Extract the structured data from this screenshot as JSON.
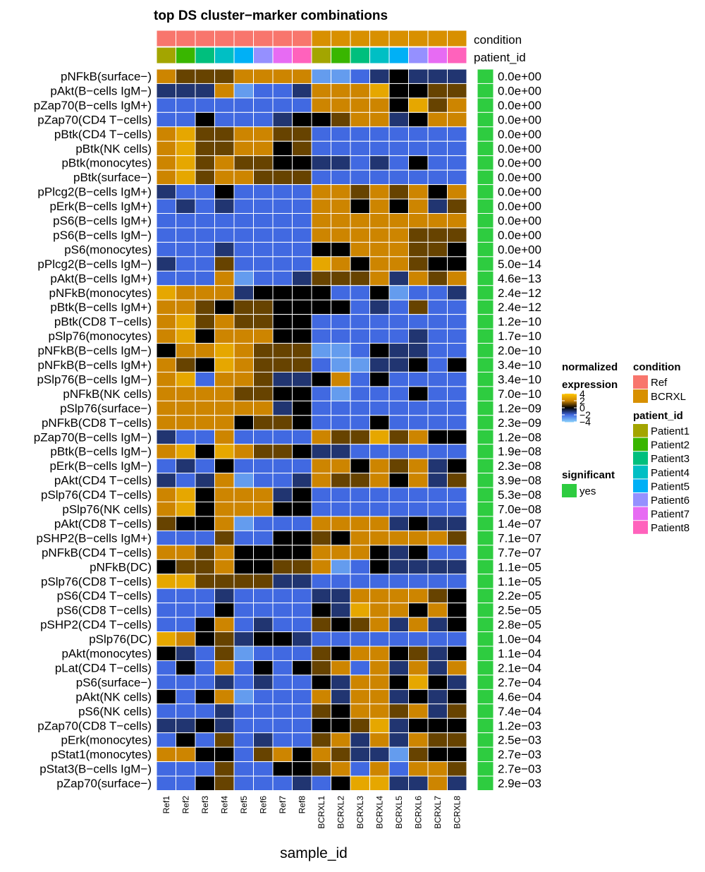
{
  "chart_data": {
    "type": "heatmap",
    "title": "top DS cluster−marker combinations",
    "xlabel": "sample_id",
    "ylabel": "",
    "samples": [
      "Ref1",
      "Ref2",
      "Ref3",
      "Ref4",
      "Ref5",
      "Ref6",
      "Ref7",
      "Ref8",
      "BCRXL1",
      "BCRXL2",
      "BCRXL3",
      "BCRXL4",
      "BCRXL5",
      "BCRXL6",
      "BCRXL7",
      "BCRXL8"
    ],
    "condition": [
      "Ref",
      "Ref",
      "Ref",
      "Ref",
      "Ref",
      "Ref",
      "Ref",
      "Ref",
      "BCRXL",
      "BCRXL",
      "BCRXL",
      "BCRXL",
      "BCRXL",
      "BCRXL",
      "BCRXL",
      "BCRXL"
    ],
    "patient_id": [
      "Patient1",
      "Patient2",
      "Patient3",
      "Patient4",
      "Patient5",
      "Patient6",
      "Patient7",
      "Patient8",
      "Patient1",
      "Patient2",
      "Patient3",
      "Patient4",
      "Patient5",
      "Patient6",
      "Patient7",
      "Patient8"
    ],
    "top_annotation_labels": [
      "condition",
      "patient_id"
    ],
    "rows": [
      "pNFkB(surface−)",
      "pAkt(B−cells IgM−)",
      "pZap70(B−cells IgM+)",
      "pZap70(CD4 T−cells)",
      "pBtk(CD4 T−cells)",
      "pBtk(NK cells)",
      "pBtk(monocytes)",
      "pBtk(surface−)",
      "pPlcg2(B−cells IgM+)",
      "pErk(B−cells IgM+)",
      "pS6(B−cells IgM+)",
      "pS6(B−cells IgM−)",
      "pS6(monocytes)",
      "pPlcg2(B−cells IgM−)",
      "pAkt(B−cells IgM+)",
      "pNFkB(monocytes)",
      "pBtk(B−cells IgM+)",
      "pBtk(CD8 T−cells)",
      "pSlp76(monocytes)",
      "pNFkB(B−cells IgM−)",
      "pNFkB(B−cells IgM+)",
      "pSlp76(B−cells IgM−)",
      "pNFkB(NK cells)",
      "pSlp76(surface−)",
      "pNFkB(CD8 T−cells)",
      "pZap70(B−cells IgM−)",
      "pBtk(B−cells IgM−)",
      "pErk(B−cells IgM−)",
      "pAkt(CD4 T−cells)",
      "pSlp76(CD4 T−cells)",
      "pSlp76(NK cells)",
      "pAkt(CD8 T−cells)",
      "pSHP2(B−cells IgM+)",
      "pNFkB(CD4 T−cells)",
      "pNFkB(DC)",
      "pSlp76(CD8 T−cells)",
      "pS6(CD4 T−cells)",
      "pS6(CD8 T−cells)",
      "pSHP2(CD4 T−cells)",
      "pSlp76(DC)",
      "pAkt(monocytes)",
      "pLat(CD4 T−cells)",
      "pS6(surface−)",
      "pAkt(NK cells)",
      "pS6(NK cells)",
      "pZap70(CD8 T−cells)",
      "pErk(monocytes)",
      "pStat1(monocytes)",
      "pStat3(B−cells IgM−)",
      "pZap70(surface−)"
    ],
    "p_adj": [
      "0.0e+00",
      "0.0e+00",
      "0.0e+00",
      "0.0e+00",
      "0.0e+00",
      "0.0e+00",
      "0.0e+00",
      "0.0e+00",
      "0.0e+00",
      "0.0e+00",
      "0.0e+00",
      "0.0e+00",
      "0.0e+00",
      "5.0e−14",
      "4.6e−13",
      "2.4e−12",
      "2.4e−12",
      "1.2e−10",
      "1.7e−10",
      "2.0e−10",
      "3.4e−10",
      "3.4e−10",
      "7.0e−10",
      "1.2e−09",
      "2.3e−09",
      "1.2e−08",
      "1.9e−08",
      "2.3e−08",
      "3.9e−08",
      "5.3e−08",
      "7.0e−08",
      "1.4e−07",
      "7.1e−07",
      "7.7e−07",
      "1.1e−05",
      "1.1e−05",
      "2.2e−05",
      "2.5e−05",
      "2.8e−05",
      "1.0e−04",
      "1.1e−04",
      "2.1e−04",
      "2.7e−04",
      "4.6e−04",
      "7.4e−04",
      "1.2e−03",
      "2.5e−03",
      "2.7e−03",
      "2.7e−03",
      "2.9e−03"
    ],
    "significant": "yes",
    "values": [
      [
        2,
        1,
        1,
        1,
        2,
        2,
        2,
        2,
        -3,
        -3,
        -2,
        -1,
        0,
        -1,
        -1,
        -1
      ],
      [
        -1,
        -1,
        -1,
        2,
        -3,
        -2,
        -2,
        -1,
        2,
        2,
        2,
        3,
        0,
        0,
        1,
        1
      ],
      [
        -2,
        -2,
        -2,
        -2,
        -2,
        -2,
        -2,
        -2,
        2,
        2,
        2,
        2,
        0,
        3,
        1,
        2
      ],
      [
        -2,
        -2,
        0,
        -2,
        -2,
        -2,
        -1,
        0,
        0,
        1,
        2,
        2,
        -1,
        0,
        2,
        2
      ],
      [
        2,
        3,
        1,
        1,
        2,
        2,
        1,
        1,
        -2,
        -2,
        -2,
        -2,
        -2,
        -2,
        -2,
        -2
      ],
      [
        2,
        3,
        1,
        1,
        2,
        2,
        0,
        1,
        -2,
        -2,
        -2,
        -2,
        -2,
        -2,
        -2,
        -2
      ],
      [
        2,
        3,
        1,
        2,
        1,
        1,
        0,
        0,
        -1,
        -1,
        -2,
        -1,
        -2,
        0,
        -2,
        -2
      ],
      [
        2,
        3,
        1,
        2,
        2,
        1,
        1,
        1,
        -2,
        -2,
        -2,
        -2,
        -2,
        -2,
        -2,
        -2
      ],
      [
        -1,
        -2,
        -2,
        0,
        -2,
        -2,
        -2,
        -2,
        2,
        2,
        1,
        2,
        1,
        2,
        0,
        2
      ],
      [
        -2,
        -1,
        -2,
        -1,
        -2,
        -2,
        -2,
        -2,
        2,
        2,
        0,
        2,
        0,
        2,
        -1,
        1
      ],
      [
        -2,
        -2,
        -2,
        -2,
        -2,
        -2,
        -2,
        -2,
        2,
        2,
        2,
        2,
        2,
        2,
        2,
        2
      ],
      [
        -2,
        -2,
        -2,
        -2,
        -2,
        -2,
        -2,
        -2,
        2,
        2,
        2,
        2,
        2,
        1,
        1,
        1
      ],
      [
        -2,
        -2,
        -2,
        -1,
        -2,
        -2,
        -2,
        -2,
        0,
        0,
        2,
        2,
        2,
        1,
        1,
        0
      ],
      [
        -1,
        -2,
        -2,
        1,
        -2,
        -2,
        -2,
        -2,
        3,
        2,
        0,
        2,
        2,
        1,
        0,
        0
      ],
      [
        -2,
        -2,
        -2,
        2,
        -3,
        -2,
        -2,
        -1,
        1,
        1,
        1,
        2,
        -1,
        2,
        1,
        2
      ],
      [
        3,
        2,
        2,
        2,
        -1,
        0,
        0,
        0,
        0,
        -2,
        -2,
        0,
        -3,
        -2,
        -2,
        -1
      ],
      [
        2,
        2,
        1,
        0,
        1,
        1,
        0,
        0,
        0,
        0,
        -2,
        -1,
        -2,
        1,
        -2,
        -2
      ],
      [
        2,
        3,
        1,
        2,
        1,
        1,
        0,
        0,
        -2,
        -2,
        -2,
        -2,
        -2,
        -2,
        -2,
        -2
      ],
      [
        2,
        3,
        0,
        2,
        2,
        2,
        0,
        0,
        -2,
        -2,
        -2,
        -2,
        -2,
        -1,
        -2,
        -2
      ],
      [
        0,
        2,
        2,
        3,
        2,
        1,
        1,
        1,
        -3,
        -3,
        -2,
        0,
        -1,
        -1,
        -2,
        -2
      ],
      [
        2,
        1,
        0,
        3,
        2,
        1,
        1,
        1,
        -2,
        -3,
        -3,
        -1,
        -1,
        0,
        -2,
        0
      ],
      [
        2,
        3,
        -2,
        2,
        2,
        1,
        -1,
        -1,
        0,
        2,
        -2,
        0,
        -2,
        -2,
        -2,
        -2
      ],
      [
        2,
        2,
        2,
        2,
        1,
        1,
        0,
        0,
        -2,
        -3,
        -2,
        -2,
        -2,
        0,
        -2,
        -2
      ],
      [
        2,
        2,
        2,
        2,
        2,
        2,
        -1,
        0,
        -2,
        -2,
        -2,
        -2,
        -2,
        -2,
        -2,
        -2
      ],
      [
        2,
        2,
        2,
        2,
        0,
        1,
        1,
        0,
        -2,
        -2,
        -2,
        0,
        -2,
        -2,
        -2,
        -2
      ],
      [
        -1,
        -2,
        -2,
        2,
        -2,
        -2,
        -2,
        -2,
        2,
        1,
        1,
        3,
        1,
        2,
        0,
        0
      ],
      [
        2,
        3,
        0,
        3,
        2,
        1,
        1,
        0,
        -1,
        -1,
        -2,
        -2,
        -2,
        -2,
        -2,
        -2
      ],
      [
        -2,
        -1,
        -2,
        0,
        -2,
        -2,
        -2,
        -2,
        2,
        2,
        0,
        2,
        1,
        2,
        -1,
        0
      ],
      [
        -1,
        -2,
        -1,
        2,
        -3,
        -2,
        -2,
        -1,
        2,
        1,
        1,
        2,
        0,
        2,
        -1,
        1
      ],
      [
        2,
        3,
        0,
        2,
        2,
        2,
        -1,
        0,
        -2,
        -2,
        -2,
        -2,
        -2,
        -2,
        -2,
        -2
      ],
      [
        2,
        3,
        0,
        2,
        2,
        2,
        0,
        0,
        -2,
        -2,
        -2,
        -2,
        -2,
        -2,
        -2,
        -2
      ],
      [
        1,
        0,
        0,
        2,
        -3,
        -2,
        -2,
        -2,
        2,
        2,
        2,
        2,
        -1,
        0,
        -1,
        -1
      ],
      [
        -2,
        -2,
        -2,
        1,
        -2,
        -2,
        0,
        0,
        1,
        0,
        2,
        2,
        2,
        2,
        2,
        1
      ],
      [
        2,
        2,
        1,
        2,
        0,
        0,
        0,
        0,
        2,
        2,
        2,
        0,
        -1,
        0,
        -2,
        -2
      ],
      [
        0,
        1,
        1,
        2,
        0,
        0,
        1,
        1,
        2,
        -3,
        -2,
        0,
        -1,
        -1,
        -1,
        -1
      ],
      [
        3,
        3,
        1,
        1,
        1,
        1,
        -1,
        -1,
        -2,
        -2,
        -2,
        -2,
        -2,
        -2,
        -2,
        -2
      ],
      [
        -2,
        -2,
        -2,
        -1,
        -2,
        -2,
        -2,
        -2,
        -1,
        -1,
        2,
        2,
        2,
        2,
        1,
        0
      ],
      [
        -2,
        -2,
        -2,
        0,
        -2,
        -2,
        -2,
        -2,
        0,
        -1,
        3,
        2,
        2,
        0,
        2,
        0
      ],
      [
        -2,
        -2,
        0,
        2,
        -2,
        -1,
        -2,
        -2,
        1,
        0,
        1,
        2,
        -1,
        2,
        -1,
        0
      ],
      [
        3,
        2,
        0,
        1,
        -1,
        0,
        0,
        -1,
        -2,
        -2,
        -2,
        -2,
        -2,
        -2,
        -2,
        -2
      ],
      [
        0,
        -1,
        -2,
        1,
        -3,
        -2,
        -2,
        -2,
        1,
        0,
        2,
        2,
        0,
        1,
        -1,
        0
      ],
      [
        -2,
        0,
        -2,
        2,
        -2,
        0,
        -2,
        0,
        1,
        2,
        -2,
        2,
        -1,
        2,
        -1,
        2
      ],
      [
        -2,
        -2,
        -2,
        -1,
        -2,
        -1,
        -2,
        -2,
        0,
        -1,
        2,
        2,
        0,
        3,
        0,
        -1
      ],
      [
        0,
        -2,
        0,
        2,
        -3,
        -2,
        -2,
        -2,
        2,
        -1,
        2,
        2,
        -1,
        0,
        -1,
        0
      ],
      [
        -2,
        -2,
        -2,
        -1,
        -2,
        -2,
        -2,
        -2,
        1,
        0,
        2,
        2,
        1,
        2,
        -1,
        1
      ],
      [
        -1,
        -1,
        0,
        -1,
        -2,
        -2,
        -2,
        -2,
        0,
        0,
        1,
        3,
        -1,
        0,
        0,
        0
      ],
      [
        -2,
        0,
        -2,
        1,
        -2,
        -1,
        -2,
        -2,
        1,
        2,
        -1,
        2,
        -1,
        2,
        1,
        1
      ],
      [
        2,
        2,
        0,
        0,
        -2,
        1,
        2,
        0,
        2,
        1,
        -1,
        -1,
        -3,
        1,
        0,
        0
      ],
      [
        -2,
        -2,
        -2,
        1,
        -2,
        -2,
        0,
        0,
        1,
        2,
        -2,
        2,
        -2,
        2,
        2,
        1
      ],
      [
        -2,
        -2,
        0,
        1,
        -2,
        -2,
        -2,
        -1,
        -2,
        0,
        3,
        3,
        -1,
        -1,
        2,
        -1
      ]
    ],
    "legend": {
      "expression_title": [
        "normalized",
        "expression"
      ],
      "expression_ticks": [
        "4",
        "2",
        "0",
        "−2",
        "−4"
      ],
      "significant_title": "significant",
      "significant_entries": [
        "yes"
      ],
      "condition_title": "condition",
      "condition_entries": [
        "Ref",
        "BCRXL"
      ],
      "patient_title": "patient_id",
      "patient_entries": [
        "Patient1",
        "Patient2",
        "Patient3",
        "Patient4",
        "Patient5",
        "Patient6",
        "Patient7",
        "Patient8"
      ]
    },
    "colors": {
      "condition": {
        "Ref": "#F8766D",
        "BCRXL": "#D89000"
      },
      "patient": {
        "Patient1": "#A3A500",
        "Patient2": "#39B600",
        "Patient3": "#00BF7D",
        "Patient4": "#00BFC4",
        "Patient5": "#00B0F6",
        "Patient6": "#9590FF",
        "Patient7": "#E76BF3",
        "Patient8": "#FF62BC"
      },
      "significant": "#2ECC40",
      "expression_scale": [
        "#87CEFA",
        "#4169E1",
        "#000000",
        "#CD8500",
        "#FFC800"
      ]
    }
  }
}
